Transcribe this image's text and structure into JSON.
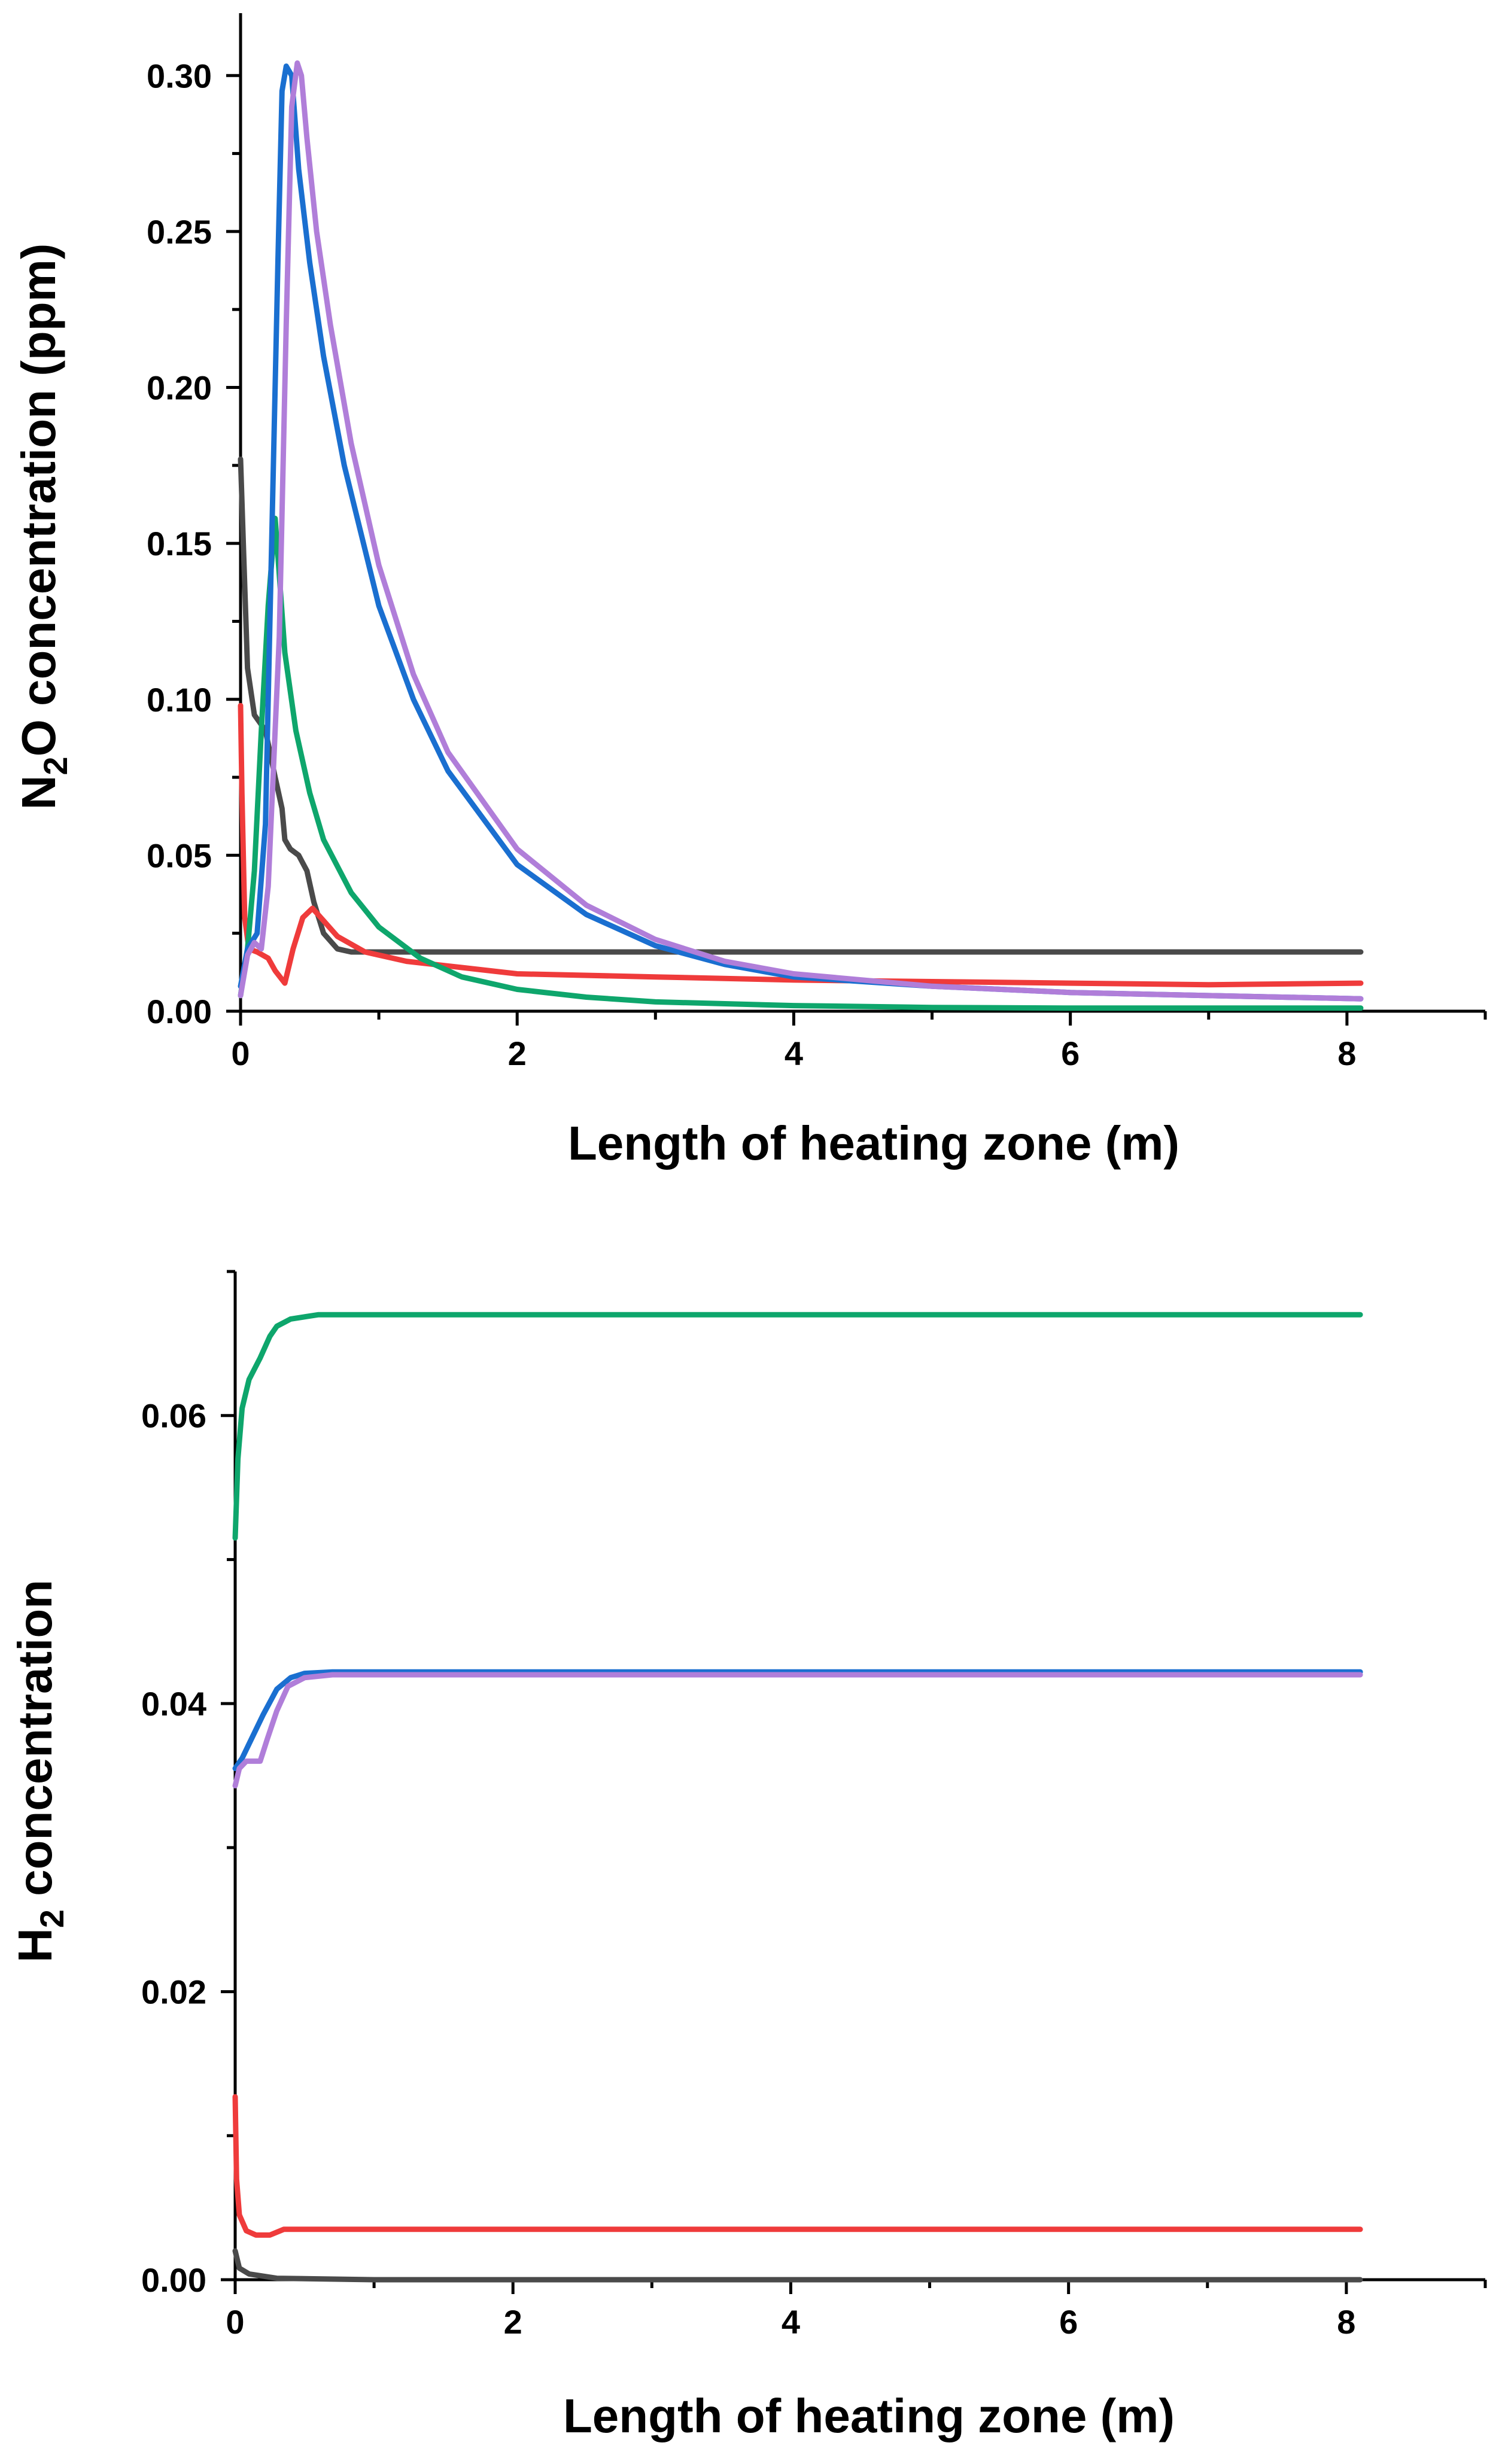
{
  "colors": {
    "black": "#4a4a4a",
    "red": "#ef3b3b",
    "green": "#0ea66c",
    "blue": "#1a6fd0",
    "purple": "#b07ed9"
  },
  "chart_data": [
    {
      "type": "line",
      "title": "",
      "xlabel": "Length of heating zone (m)",
      "ylabel_main": "N",
      "ylabel_sub": "2",
      "ylabel_rest": "O concentration (ppm)",
      "xlim": [
        0,
        9
      ],
      "ylim": [
        0,
        0.32
      ],
      "xticks": [
        "0",
        "2",
        "4",
        "6",
        "8"
      ],
      "yticks": [
        "0.00",
        "0.05",
        "0.10",
        "0.15",
        "0.20",
        "0.25",
        "0.30"
      ],
      "series": [
        {
          "name": "black",
          "color_key": "black",
          "points": [
            [
              0,
              0.177
            ],
            [
              0.02,
              0.15
            ],
            [
              0.05,
              0.11
            ],
            [
              0.1,
              0.095
            ],
            [
              0.18,
              0.09
            ],
            [
              0.25,
              0.075
            ],
            [
              0.3,
              0.065
            ],
            [
              0.32,
              0.055
            ],
            [
              0.36,
              0.052
            ],
            [
              0.42,
              0.05
            ],
            [
              0.48,
              0.045
            ],
            [
              0.53,
              0.035
            ],
            [
              0.6,
              0.025
            ],
            [
              0.7,
              0.02
            ],
            [
              0.8,
              0.019
            ],
            [
              1.0,
              0.019
            ],
            [
              2.0,
              0.019
            ],
            [
              4.0,
              0.019
            ],
            [
              6.0,
              0.019
            ],
            [
              8.1,
              0.019
            ]
          ]
        },
        {
          "name": "red",
          "color_key": "red",
          "points": [
            [
              0,
              0.098
            ],
            [
              0.01,
              0.07
            ],
            [
              0.03,
              0.03
            ],
            [
              0.06,
              0.02
            ],
            [
              0.12,
              0.019
            ],
            [
              0.2,
              0.017
            ],
            [
              0.25,
              0.013
            ],
            [
              0.32,
              0.009
            ],
            [
              0.38,
              0.02
            ],
            [
              0.45,
              0.03
            ],
            [
              0.52,
              0.033
            ],
            [
              0.6,
              0.029
            ],
            [
              0.7,
              0.024
            ],
            [
              0.9,
              0.019
            ],
            [
              1.2,
              0.016
            ],
            [
              1.6,
              0.014
            ],
            [
              2.0,
              0.012
            ],
            [
              3.0,
              0.011
            ],
            [
              4.0,
              0.01
            ],
            [
              5.0,
              0.0095
            ],
            [
              6.0,
              0.009
            ],
            [
              7.0,
              0.0085
            ],
            [
              8.1,
              0.009
            ]
          ]
        },
        {
          "name": "green",
          "color_key": "green",
          "points": [
            [
              0,
              0.005
            ],
            [
              0.05,
              0.02
            ],
            [
              0.1,
              0.045
            ],
            [
              0.15,
              0.09
            ],
            [
              0.2,
              0.13
            ],
            [
              0.25,
              0.158
            ],
            [
              0.28,
              0.14
            ],
            [
              0.32,
              0.115
            ],
            [
              0.4,
              0.09
            ],
            [
              0.5,
              0.07
            ],
            [
              0.6,
              0.055
            ],
            [
              0.8,
              0.038
            ],
            [
              1.0,
              0.027
            ],
            [
              1.3,
              0.017
            ],
            [
              1.6,
              0.011
            ],
            [
              2.0,
              0.007
            ],
            [
              2.5,
              0.0045
            ],
            [
              3.0,
              0.003
            ],
            [
              4.0,
              0.0018
            ],
            [
              5.0,
              0.0012
            ],
            [
              6.0,
              0.001
            ],
            [
              8.1,
              0.001
            ]
          ]
        },
        {
          "name": "blue",
          "color_key": "blue",
          "points": [
            [
              0,
              0.008
            ],
            [
              0.05,
              0.02
            ],
            [
              0.12,
              0.025
            ],
            [
              0.18,
              0.06
            ],
            [
              0.22,
              0.14
            ],
            [
              0.27,
              0.24
            ],
            [
              0.3,
              0.295
            ],
            [
              0.33,
              0.303
            ],
            [
              0.37,
              0.3
            ],
            [
              0.42,
              0.27
            ],
            [
              0.5,
              0.24
            ],
            [
              0.6,
              0.21
            ],
            [
              0.75,
              0.175
            ],
            [
              1.0,
              0.13
            ],
            [
              1.25,
              0.1
            ],
            [
              1.5,
              0.077
            ],
            [
              2.0,
              0.047
            ],
            [
              2.5,
              0.031
            ],
            [
              3.0,
              0.021
            ],
            [
              3.5,
              0.015
            ],
            [
              4.0,
              0.011
            ],
            [
              5.0,
              0.008
            ],
            [
              6.0,
              0.006
            ],
            [
              7.0,
              0.005
            ],
            [
              8.1,
              0.004
            ]
          ]
        },
        {
          "name": "purple",
          "color_key": "purple",
          "points": [
            [
              0,
              0.005
            ],
            [
              0.05,
              0.018
            ],
            [
              0.1,
              0.022
            ],
            [
              0.15,
              0.02
            ],
            [
              0.2,
              0.04
            ],
            [
              0.28,
              0.12
            ],
            [
              0.33,
              0.22
            ],
            [
              0.37,
              0.29
            ],
            [
              0.41,
              0.304
            ],
            [
              0.44,
              0.3
            ],
            [
              0.48,
              0.28
            ],
            [
              0.55,
              0.25
            ],
            [
              0.65,
              0.22
            ],
            [
              0.8,
              0.182
            ],
            [
              1.0,
              0.143
            ],
            [
              1.25,
              0.108
            ],
            [
              1.5,
              0.083
            ],
            [
              2.0,
              0.052
            ],
            [
              2.5,
              0.034
            ],
            [
              3.0,
              0.023
            ],
            [
              3.5,
              0.016
            ],
            [
              4.0,
              0.012
            ],
            [
              5.0,
              0.008
            ],
            [
              6.0,
              0.006
            ],
            [
              7.0,
              0.005
            ],
            [
              8.1,
              0.004
            ]
          ]
        }
      ]
    },
    {
      "type": "line",
      "title": "",
      "xlabel": "Length of heating zone (m)",
      "ylabel_main": "H",
      "ylabel_sub": "2",
      "ylabel_rest": " concentration",
      "xlim": [
        0,
        9
      ],
      "ylim": [
        0,
        0.07
      ],
      "xticks": [
        "0",
        "2",
        "4",
        "6",
        "8"
      ],
      "yticks": [
        "0.00",
        "0.02",
        "0.04",
        "0.06"
      ],
      "series": [
        {
          "name": "black",
          "color_key": "black",
          "points": [
            [
              0,
              0.002
            ],
            [
              0.03,
              0.0008
            ],
            [
              0.1,
              0.0004
            ],
            [
              0.3,
              0.0001
            ],
            [
              1.0,
              0.0
            ],
            [
              8.1,
              0.0
            ]
          ]
        },
        {
          "name": "red",
          "color_key": "red",
          "points": [
            [
              0,
              0.0127
            ],
            [
              0.01,
              0.007
            ],
            [
              0.03,
              0.0045
            ],
            [
              0.08,
              0.0034
            ],
            [
              0.15,
              0.0031
            ],
            [
              0.25,
              0.0031
            ],
            [
              0.35,
              0.0035
            ],
            [
              0.5,
              0.0035
            ],
            [
              1.0,
              0.0035
            ],
            [
              4.0,
              0.0035
            ],
            [
              8.1,
              0.0035
            ]
          ]
        },
        {
          "name": "green",
          "color_key": "green",
          "points": [
            [
              0,
              0.0515
            ],
            [
              0.02,
              0.057
            ],
            [
              0.05,
              0.0605
            ],
            [
              0.1,
              0.0625
            ],
            [
              0.18,
              0.064
            ],
            [
              0.25,
              0.0655
            ],
            [
              0.3,
              0.0662
            ],
            [
              0.4,
              0.0667
            ],
            [
              0.6,
              0.067
            ],
            [
              1.0,
              0.067
            ],
            [
              8.1,
              0.067
            ]
          ]
        },
        {
          "name": "blue",
          "color_key": "blue",
          "points": [
            [
              0,
              0.0355
            ],
            [
              0.05,
              0.0362
            ],
            [
              0.1,
              0.0372
            ],
            [
              0.2,
              0.0392
            ],
            [
              0.3,
              0.041
            ],
            [
              0.4,
              0.0418
            ],
            [
              0.5,
              0.0421
            ],
            [
              0.7,
              0.0422
            ],
            [
              1.0,
              0.0422
            ],
            [
              8.1,
              0.0422
            ]
          ]
        },
        {
          "name": "purple",
          "color_key": "purple",
          "points": [
            [
              0,
              0.0343
            ],
            [
              0.03,
              0.0355
            ],
            [
              0.08,
              0.036
            ],
            [
              0.18,
              0.036
            ],
            [
              0.23,
              0.0375
            ],
            [
              0.3,
              0.0395
            ],
            [
              0.38,
              0.0412
            ],
            [
              0.5,
              0.0418
            ],
            [
              0.7,
              0.042
            ],
            [
              1.0,
              0.042
            ],
            [
              8.1,
              0.042
            ]
          ]
        }
      ]
    }
  ]
}
